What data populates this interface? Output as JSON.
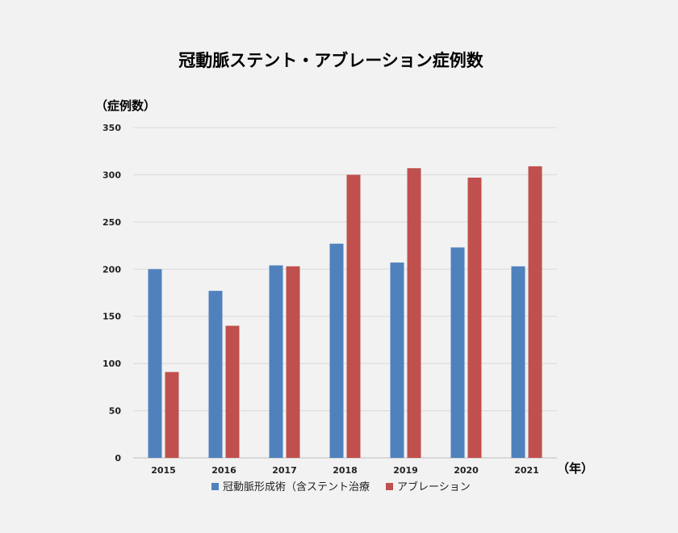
{
  "chart_data": {
    "type": "bar",
    "title": "冠動脈ステント・アブレーション症例数",
    "ylabel": "（症例数）",
    "xlabel": "（年）",
    "categories": [
      "2015",
      "2016",
      "2017",
      "2018",
      "2019",
      "2020",
      "2021"
    ],
    "ylim": [
      0,
      350
    ],
    "yticks": [
      0,
      50,
      100,
      150,
      200,
      250,
      300,
      350
    ],
    "grid": true,
    "legend_position": "bottom",
    "series": [
      {
        "name": "冠動脈形成術（含ステント治療",
        "color": "#4f81bd",
        "values": [
          200,
          177,
          204,
          227,
          207,
          223,
          203
        ]
      },
      {
        "name": "アブレーション",
        "color": "#c0504d",
        "values": [
          91,
          140,
          203,
          300,
          307,
          297,
          309
        ]
      }
    ]
  }
}
